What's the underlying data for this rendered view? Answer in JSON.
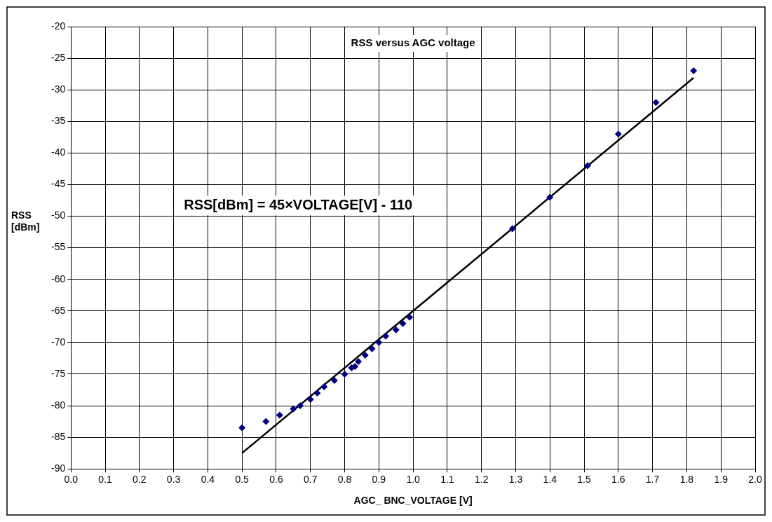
{
  "chart_data": {
    "type": "scatter",
    "title": "RSS versus AGC voltage",
    "xlabel": "AGC_ BNC_VOLTAGE [V]",
    "ylabel": "RSS [dBm]",
    "annotations": [
      "RSS[dBm] = 45×VOLTAGE[V] - 110"
    ],
    "series": [
      {
        "color": "#000080",
        "marker": "diamond",
        "x": [
          0.5,
          0.57,
          0.61,
          0.65,
          0.67,
          0.7,
          0.72,
          0.74,
          0.77,
          0.8,
          0.82,
          0.83,
          0.84,
          0.86,
          0.88,
          0.9,
          0.92,
          0.95,
          0.97,
          0.99,
          1.29,
          1.4,
          1.51,
          1.6,
          1.71,
          1.82
        ],
        "values": [
          -83.5,
          -82.5,
          -81.5,
          -80.5,
          -80,
          -79,
          -78,
          -77,
          -76,
          -75,
          -74,
          -73.8,
          -73,
          -72,
          -71,
          -70,
          -69,
          -68,
          -67,
          -66,
          -52,
          -47,
          -42,
          -37,
          -32,
          -27
        ]
      },
      {
        "type": "line",
        "color": "#000000",
        "marker": "none",
        "line_style": "solid",
        "x": [
          0.5,
          1.82
        ],
        "values": [
          -87.5,
          -28.1
        ]
      }
    ],
    "xlim": [
      0,
      2
    ],
    "xticks": [
      {
        "value": 0,
        "label": "0.0"
      },
      0.1,
      0.2,
      0.3,
      0.4,
      0.5,
      0.6,
      0.7,
      0.8,
      0.9,
      {
        "value": 1,
        "label": "1.0"
      },
      1.1,
      1.2,
      1.3,
      1.4,
      1.5,
      1.6,
      1.7,
      1.8,
      1.9,
      {
        "value": 2,
        "label": "2.0"
      }
    ],
    "ylim": [
      -90,
      -20
    ],
    "yticks": [
      -90,
      -85,
      -80,
      -75,
      -70,
      -65,
      -60,
      -55,
      -50,
      -45,
      -40,
      -35,
      -30,
      -25,
      -20
    ],
    "grid": true,
    "legend": false
  }
}
